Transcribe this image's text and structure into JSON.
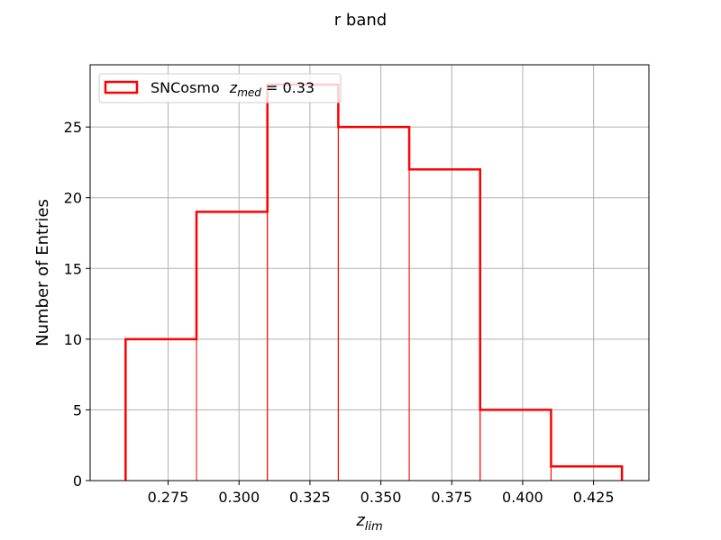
{
  "chart_data": {
    "type": "bar",
    "title": "r band",
    "xlabel_main": "z",
    "xlabel_sub": "lim",
    "ylabel": "Number of Entries",
    "bin_edges": [
      0.26,
      0.285,
      0.31,
      0.335,
      0.36,
      0.385,
      0.41,
      0.435
    ],
    "values": [
      10,
      19,
      28,
      25,
      22,
      5,
      1
    ],
    "xlim": [
      0.2475,
      0.4445
    ],
    "ylim": [
      0,
      29.4
    ],
    "x_ticks": [
      "0.275",
      "0.300",
      "0.325",
      "0.350",
      "0.375",
      "0.400",
      "0.425"
    ],
    "x_tick_values": [
      0.275,
      0.3,
      0.325,
      0.35,
      0.375,
      0.4,
      0.425
    ],
    "y_ticks": [
      "0",
      "5",
      "10",
      "15",
      "20",
      "25"
    ],
    "y_tick_values": [
      0,
      5,
      10,
      15,
      20,
      25
    ],
    "grid": true,
    "legend_position": "upper-left",
    "series": [
      {
        "name": "SNCosmo",
        "label_var": "z",
        "label_sub": "med",
        "label_value": " = 0.33",
        "color": "#ff0000"
      }
    ]
  }
}
